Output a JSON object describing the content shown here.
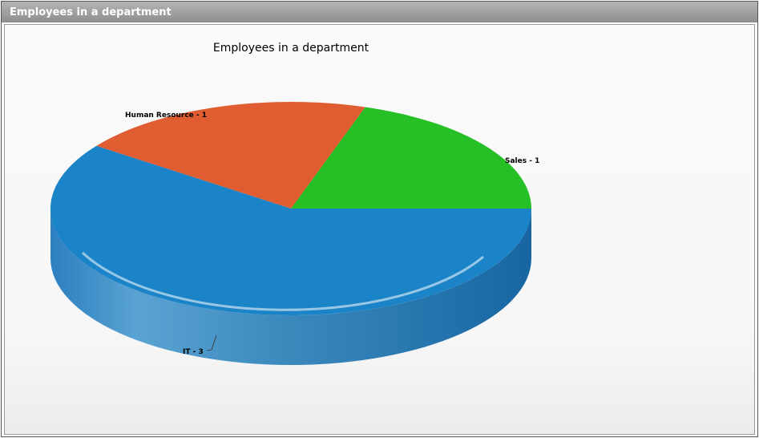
{
  "window": {
    "title": "Employees in a department"
  },
  "chart_data": {
    "type": "pie",
    "style": "3d",
    "title": "Employees in a department",
    "categories": [
      "Sales",
      "Human Resource",
      "IT"
    ],
    "values": [
      1,
      1,
      3
    ],
    "labels": [
      "Sales - 1",
      "Human Resource - 1",
      "IT - 3"
    ],
    "colors": [
      "#26c026",
      "#e05c31",
      "#1b84c8"
    ]
  }
}
